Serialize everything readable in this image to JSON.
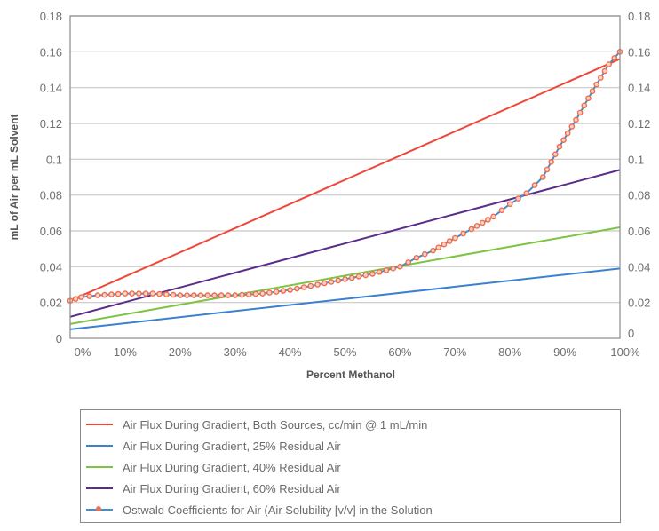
{
  "chart_data": {
    "type": "line",
    "title": "",
    "xlabel": "Percent Methanol",
    "ylabel": "mL of Air per mL Solvent",
    "xlim": [
      0,
      100
    ],
    "ylim": [
      0,
      0.18
    ],
    "grid": true,
    "legend_position": "bottom",
    "x_ticks": [
      "0%",
      "10%",
      "20%",
      "30%",
      "40%",
      "50%",
      "60%",
      "70%",
      "80%",
      "90%",
      "100%"
    ],
    "x_tick_values": [
      0,
      10,
      20,
      30,
      40,
      50,
      60,
      70,
      80,
      90,
      100
    ],
    "y_ticks_left": [
      "0",
      "0.02",
      "0.04",
      "0.06",
      "0.08",
      "0.1",
      "0.12",
      "0.14",
      "0.16",
      "0.18"
    ],
    "y_ticks_right": [
      "0",
      "0.02",
      "0.04",
      "0.06",
      "0.08",
      "0.1",
      "0.12",
      "0.14",
      "0.16",
      "0.18"
    ],
    "y_tick_values": [
      0,
      0.02,
      0.04,
      0.06,
      0.08,
      0.1,
      0.12,
      0.14,
      0.16,
      0.18
    ],
    "series": [
      {
        "name": "Air Flux During Gradient, Both Sources, cc/min @ 1 mL/min",
        "color": "#f0473a",
        "markers": false,
        "x": [
          0,
          100
        ],
        "y": [
          0.021,
          0.156
        ]
      },
      {
        "name": "Air Flux During Gradient, 25% Residual Air",
        "color": "#3a82cf",
        "markers": false,
        "x": [
          0,
          100
        ],
        "y": [
          0.005,
          0.039
        ]
      },
      {
        "name": "Air Flux During Gradient, 40% Residual Air",
        "color": "#7cc444",
        "markers": false,
        "x": [
          0,
          100
        ],
        "y": [
          0.008,
          0.062
        ]
      },
      {
        "name": "Air Flux During Gradient, 60% Residual Air",
        "color": "#5a2d8c",
        "markers": false,
        "x": [
          0,
          100
        ],
        "y": [
          0.012,
          0.094
        ]
      },
      {
        "name": "Ostwald Coefficients for Air (Air Solubility [v/v] in the Solution",
        "color": "#3a8fd8",
        "marker_color": "#f26b4a",
        "markers": true,
        "x": [
          0,
          2,
          5,
          10,
          15,
          20,
          25,
          30,
          35,
          40,
          45,
          50,
          55,
          60,
          63,
          66,
          70,
          73,
          77,
          80,
          83,
          86,
          89,
          92,
          95,
          98,
          100
        ],
        "y": [
          0.021,
          0.023,
          0.024,
          0.025,
          0.025,
          0.024,
          0.024,
          0.024,
          0.025,
          0.027,
          0.03,
          0.033,
          0.036,
          0.04,
          0.045,
          0.049,
          0.056,
          0.061,
          0.068,
          0.075,
          0.081,
          0.09,
          0.107,
          0.122,
          0.138,
          0.153,
          0.16
        ]
      }
    ]
  }
}
